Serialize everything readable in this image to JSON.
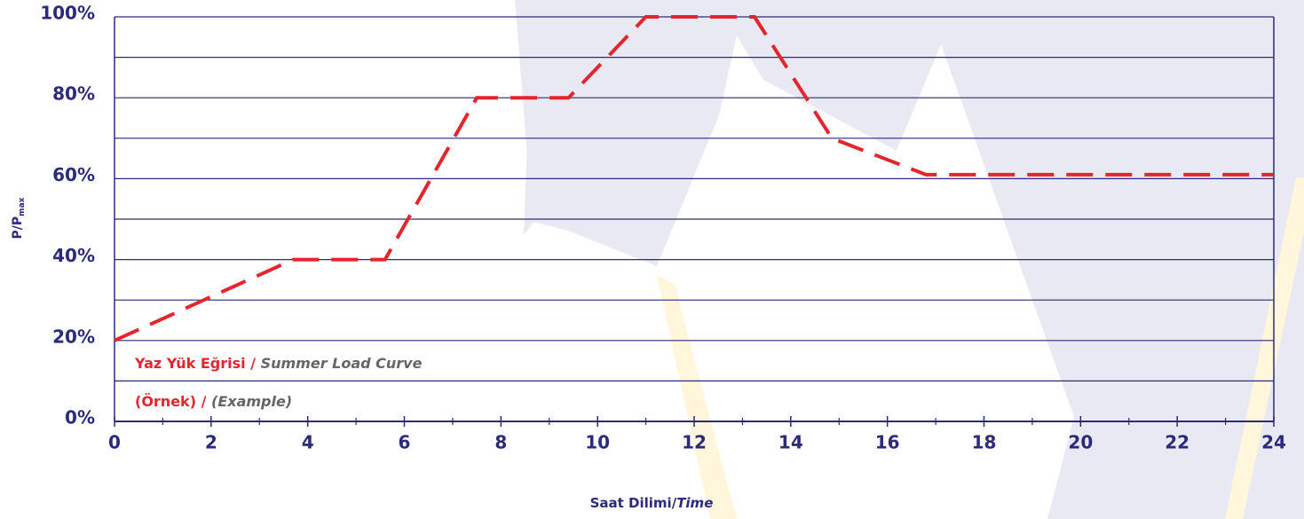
{
  "chart_data": {
    "type": "line",
    "ylabel": "P/P",
    "ylabel_sub": "max",
    "xlabel": [
      "Saat Dilimi/",
      "Time"
    ],
    "annotations": [
      [
        "Yaz Yük Eğrisi /",
        "Summer Load Curve"
      ],
      [
        "(Örnek) /",
        "(Example)"
      ]
    ],
    "x": [
      0,
      3.7,
      5.6,
      7.5,
      9.4,
      11,
      13.25,
      14.85,
      16.8,
      24
    ],
    "series": [
      {
        "color": "#e3262d",
        "values": [
          20,
          40,
          40,
          80,
          80,
          100,
          100,
          70,
          61,
          61
        ]
      }
    ],
    "xlim": [
      0,
      24
    ],
    "xticks": [
      0,
      2,
      4,
      6,
      8,
      10,
      12,
      14,
      16,
      18,
      20,
      22,
      24
    ],
    "xminorticks": [
      1,
      3,
      5,
      7,
      9,
      11,
      13,
      15,
      17,
      19,
      21,
      23
    ],
    "ylim": [
      0,
      100
    ],
    "yticks": [
      {
        "value": 0,
        "label": "0%"
      },
      {
        "value": 20,
        "label": "20%"
      },
      {
        "value": 40,
        "label": "40%"
      },
      {
        "value": 60,
        "label": "60%"
      },
      {
        "value": 80,
        "label": "80%"
      },
      {
        "value": 100,
        "label": "100%"
      }
    ],
    "yminorticks": [
      10,
      30,
      50,
      70,
      90
    ],
    "grid": true,
    "axis_color": "#2b2a7b",
    "text_gray": "#666666"
  }
}
